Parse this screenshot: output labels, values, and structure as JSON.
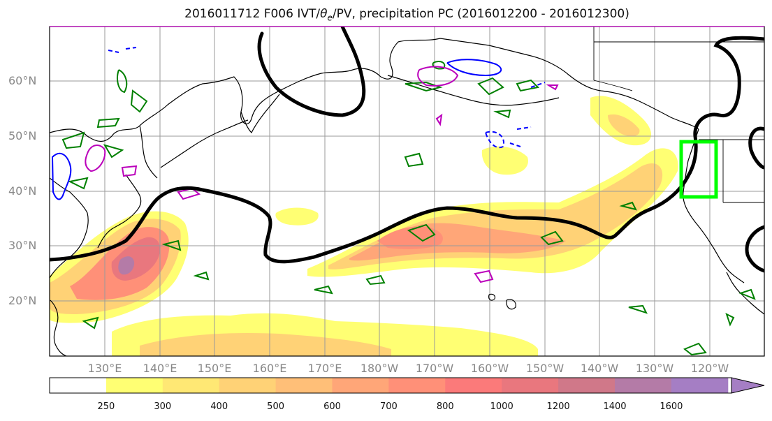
{
  "figure": {
    "title_prefix": "2016011712 F006 IVT/",
    "title_theta": "θ",
    "title_sub": "e",
    "title_suffix": "/PV, precipitation PC (2016012200 - 2016012300)"
  },
  "map": {
    "lat_labels": [
      "60°N",
      "50°N",
      "40°N",
      "30°N",
      "20°N"
    ],
    "lon_labels": [
      "130°E",
      "140°E",
      "150°E",
      "160°E",
      "170°E",
      "180°W",
      "170°W",
      "160°W",
      "150°W",
      "140°W",
      "130°W",
      "120°W"
    ],
    "colors": {
      "frame": "#000000",
      "grid": "#9a9a9a",
      "coast": "#000000",
      "pv_contour": "#000000",
      "theta_e_green": "#008000",
      "theta_e_blue": "#0000ff",
      "theta_e_magenta": "#bb00bb",
      "highlight_box": "#00ff00"
    }
  },
  "colorbar": {
    "levels": [
      "250",
      "300",
      "400",
      "500",
      "600",
      "700",
      "800",
      "1000",
      "1200",
      "1400",
      "1600"
    ],
    "colors": [
      "#ffff73",
      "#ffe874",
      "#ffd276",
      "#ffbf78",
      "#ffa678",
      "#ff9078",
      "#fb7a7a",
      "#e9777e",
      "#d07889",
      "#b47ba7",
      "#a57ec4"
    ]
  }
}
